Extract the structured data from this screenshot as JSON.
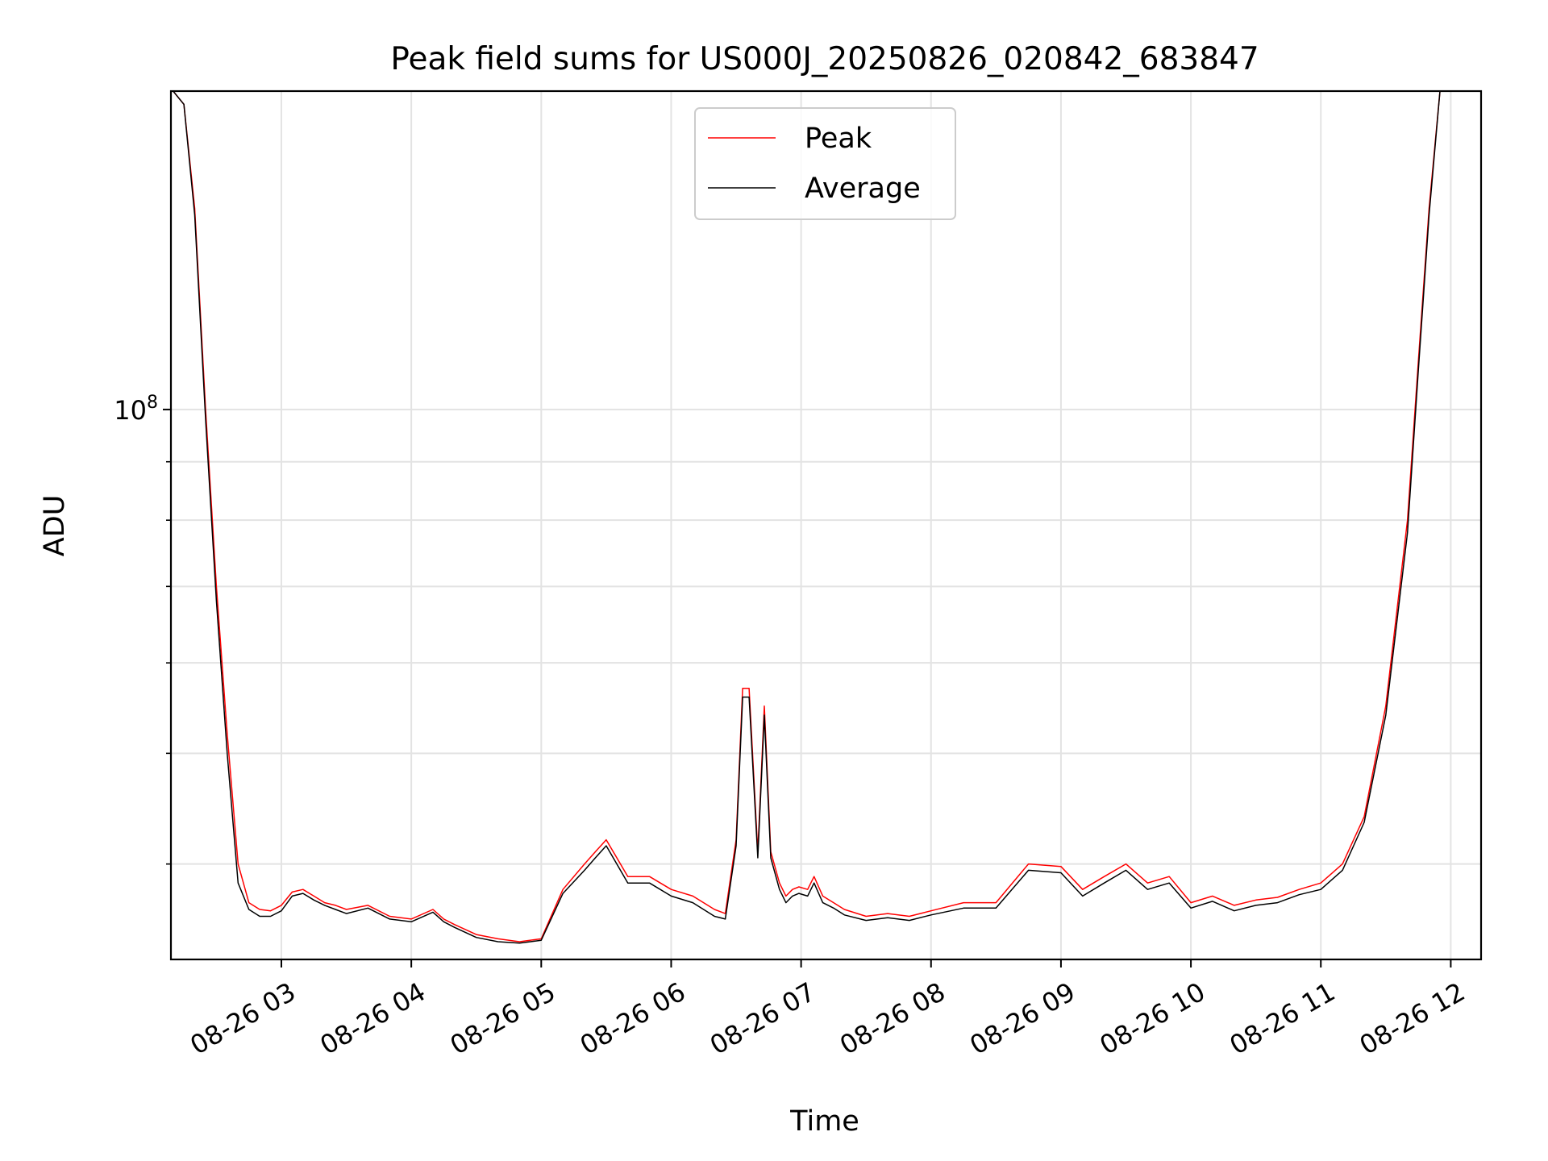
{
  "chart_data": {
    "type": "line",
    "title": "Peak field sums for US000J_20250826_020842_683847",
    "xlabel": "Time",
    "ylabel": "ADU",
    "yscale": "log",
    "ytick_label": "10",
    "ytick_exp": "8",
    "ylim": [
      33000000,
      190000000
    ],
    "xlim": [
      "08-26 02:09",
      "08-26 12:14"
    ],
    "x_ticks": [
      "08-26 03",
      "08-26 04",
      "08-26 05",
      "08-26 06",
      "08-26 07",
      "08-26 08",
      "08-26 09",
      "08-26 10",
      "08-26 11",
      "08-26 12"
    ],
    "grid": true,
    "legend": "top-center",
    "series": [
      {
        "name": "Peak",
        "color": "#ff0000",
        "x": [
          "08-26 02:10",
          "08-26 02:15",
          "08-26 02:20",
          "08-26 02:25",
          "08-26 02:30",
          "08-26 02:35",
          "08-26 02:40",
          "08-26 02:45",
          "08-26 02:50",
          "08-26 02:55",
          "08-26 03:00",
          "08-26 03:05",
          "08-26 03:10",
          "08-26 03:15",
          "08-26 03:20",
          "08-26 03:25",
          "08-26 03:30",
          "08-26 03:40",
          "08-26 03:50",
          "08-26 04:00",
          "08-26 04:10",
          "08-26 04:15",
          "08-26 04:20",
          "08-26 04:30",
          "08-26 04:40",
          "08-26 04:50",
          "08-26 05:00",
          "08-26 05:10",
          "08-26 05:20",
          "08-26 05:25",
          "08-26 05:30",
          "08-26 05:40",
          "08-26 05:50",
          "08-26 06:00",
          "08-26 06:10",
          "08-26 06:20",
          "08-26 06:25",
          "08-26 06:30",
          "08-26 06:33",
          "08-26 06:36",
          "08-26 06:40",
          "08-26 06:43",
          "08-26 06:46",
          "08-26 06:50",
          "08-26 06:53",
          "08-26 06:56",
          "08-26 06:59",
          "08-26 07:03",
          "08-26 07:06",
          "08-26 07:10",
          "08-26 07:15",
          "08-26 07:20",
          "08-26 07:30",
          "08-26 07:40",
          "08-26 07:50",
          "08-26 08:00",
          "08-26 08:15",
          "08-26 08:30",
          "08-26 08:45",
          "08-26 09:00",
          "08-26 09:10",
          "08-26 09:20",
          "08-26 09:30",
          "08-26 09:40",
          "08-26 09:50",
          "08-26 10:00",
          "08-26 10:10",
          "08-26 10:20",
          "08-26 10:30",
          "08-26 10:40",
          "08-26 10:50",
          "08-26 11:00",
          "08-26 11:10",
          "08-26 11:20",
          "08-26 11:30",
          "08-26 11:40",
          "08-26 11:45",
          "08-26 11:50",
          "08-26 11:55",
          "08-26 12:00",
          "08-26 12:05",
          "08-26 12:10"
        ],
        "y": [
          190000000,
          185000000,
          150000000,
          100000000,
          70000000,
          52000000,
          40000000,
          37000000,
          36500000,
          36400000,
          36800000,
          37800000,
          38000000,
          37500000,
          37000000,
          36800000,
          36500000,
          36800000,
          36000000,
          35800000,
          36500000,
          35800000,
          35400000,
          34700000,
          34400000,
          34200000,
          34400000,
          38000000,
          40000000,
          41000000,
          42000000,
          39000000,
          39000000,
          38000000,
          37500000,
          36500000,
          36200000,
          42000000,
          57000000,
          57000000,
          41000000,
          55000000,
          41000000,
          38500000,
          37500000,
          38000000,
          38200000,
          38000000,
          39000000,
          37500000,
          37000000,
          36500000,
          36000000,
          36200000,
          36000000,
          36400000,
          37000000,
          37000000,
          40000000,
          39800000,
          38000000,
          39000000,
          40000000,
          38500000,
          39000000,
          37000000,
          37500000,
          36800000,
          37200000,
          37400000,
          38000000,
          38500000,
          40000000,
          44000000,
          55000000,
          80000000,
          110000000,
          150000000,
          190000000,
          190000000,
          190000000,
          190000000
        ]
      },
      {
        "name": "Average",
        "color": "#000000",
        "x": [
          "08-26 02:10",
          "08-26 02:15",
          "08-26 02:20",
          "08-26 02:25",
          "08-26 02:30",
          "08-26 02:35",
          "08-26 02:40",
          "08-26 02:45",
          "08-26 02:50",
          "08-26 02:55",
          "08-26 03:00",
          "08-26 03:05",
          "08-26 03:10",
          "08-26 03:15",
          "08-26 03:20",
          "08-26 03:25",
          "08-26 03:30",
          "08-26 03:40",
          "08-26 03:50",
          "08-26 04:00",
          "08-26 04:10",
          "08-26 04:15",
          "08-26 04:20",
          "08-26 04:30",
          "08-26 04:40",
          "08-26 04:50",
          "08-26 05:00",
          "08-26 05:10",
          "08-26 05:20",
          "08-26 05:25",
          "08-26 05:30",
          "08-26 05:40",
          "08-26 05:50",
          "08-26 06:00",
          "08-26 06:10",
          "08-26 06:20",
          "08-26 06:25",
          "08-26 06:30",
          "08-26 06:33",
          "08-26 06:36",
          "08-26 06:40",
          "08-26 06:43",
          "08-26 06:46",
          "08-26 06:50",
          "08-26 06:53",
          "08-26 06:56",
          "08-26 06:59",
          "08-26 07:03",
          "08-26 07:06",
          "08-26 07:10",
          "08-26 07:15",
          "08-26 07:20",
          "08-26 07:30",
          "08-26 07:40",
          "08-26 07:50",
          "08-26 08:00",
          "08-26 08:15",
          "08-26 08:30",
          "08-26 08:45",
          "08-26 09:00",
          "08-26 09:10",
          "08-26 09:20",
          "08-26 09:30",
          "08-26 09:40",
          "08-26 09:50",
          "08-26 10:00",
          "08-26 10:10",
          "08-26 10:20",
          "08-26 10:30",
          "08-26 10:40",
          "08-26 10:50",
          "08-26 11:00",
          "08-26 11:10",
          "08-26 11:20",
          "08-26 11:30",
          "08-26 11:40",
          "08-26 11:45",
          "08-26 11:50",
          "08-26 11:55",
          "08-26 12:00",
          "08-26 12:05",
          "08-26 12:10"
        ],
        "y": [
          190000000,
          185000000,
          148000000,
          98000000,
          68000000,
          50000000,
          38500000,
          36500000,
          36000000,
          36000000,
          36400000,
          37500000,
          37700000,
          37200000,
          36800000,
          36500000,
          36200000,
          36600000,
          35800000,
          35600000,
          36300000,
          35600000,
          35200000,
          34500000,
          34200000,
          34100000,
          34300000,
          37700000,
          39500000,
          40500000,
          41500000,
          38500000,
          38500000,
          37500000,
          37000000,
          36000000,
          35800000,
          41500000,
          56000000,
          56000000,
          40500000,
          54000000,
          40500000,
          38000000,
          37000000,
          37500000,
          37700000,
          37500000,
          38500000,
          37000000,
          36600000,
          36100000,
          35700000,
          35900000,
          35700000,
          36100000,
          36600000,
          36600000,
          39500000,
          39300000,
          37500000,
          38500000,
          39500000,
          38000000,
          38500000,
          36600000,
          37100000,
          36400000,
          36800000,
          37000000,
          37600000,
          38000000,
          39500000,
          43500000,
          54000000,
          78000000,
          108000000,
          148000000,
          190000000,
          190000000,
          190000000,
          190000000
        ]
      }
    ]
  }
}
